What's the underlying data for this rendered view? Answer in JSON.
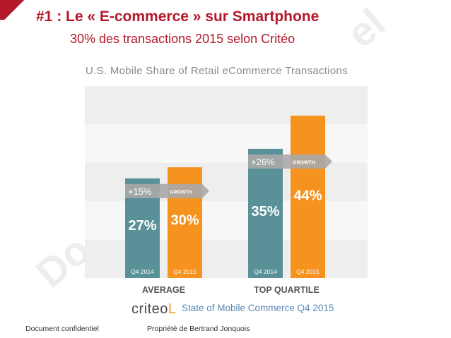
{
  "slide": {
    "title": "#1 : Le « E-commerce » sur Smartphone",
    "subtitle": "30% des transactions 2015 selon Critéo"
  },
  "watermark": {
    "left": "Do",
    "right": "el"
  },
  "colors": {
    "title": "#b3192b",
    "q4_2014": "#5a9198",
    "q4_2015": "#f6921e",
    "band_dark": "#eeeeee",
    "band_light": "#f7f7f7",
    "growth_arrow": "#a9a9a9",
    "source": "#5a86b6"
  },
  "chart_data": {
    "type": "bar",
    "title": "U.S. Mobile Share of Retail eCommerce Transactions",
    "categories": [
      "AVERAGE",
      "TOP QUARTILE"
    ],
    "series": [
      {
        "name": "Q4 2014",
        "values": [
          27,
          35
        ]
      },
      {
        "name": "Q4 2015",
        "values": [
          30,
          44
        ]
      }
    ],
    "value_labels": [
      [
        "27%",
        "30%"
      ],
      [
        "35%",
        "44%"
      ]
    ],
    "growth": [
      {
        "label": "+15%",
        "text": "GROWTH"
      },
      {
        "label": "+26%",
        "text": "GROWTH"
      }
    ],
    "ylim": [
      0,
      52
    ],
    "grid": true,
    "legend": "none"
  },
  "source": {
    "logo_text": "criteo",
    "logo_accent": "L",
    "note": "State of Mobile Commerce Q4 2015"
  },
  "footer": {
    "left": "Document confidentiel",
    "center": "Propriété de Bertrand Jonquois"
  }
}
